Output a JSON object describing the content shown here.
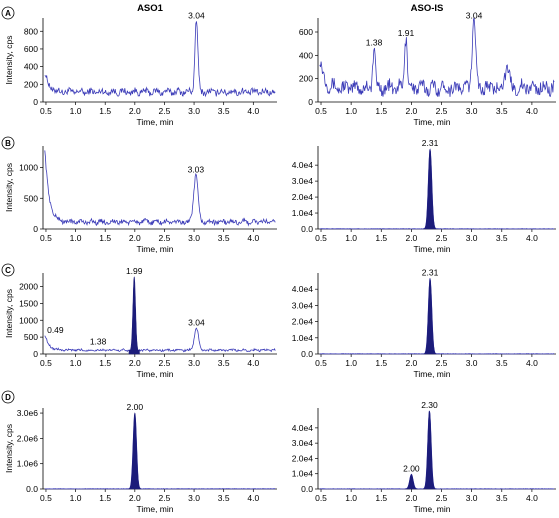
{
  "columns": [
    "ASO1",
    "ASO-IS"
  ],
  "xlabel": "Time, min",
  "ylabel": "Intensity, cps",
  "colors": {
    "trace": "#3c3cb8",
    "peak_fill": "#1c1c7a"
  },
  "chart_data": [
    {
      "id": "A-left",
      "row": "A",
      "column": "ASO1",
      "type": "line",
      "style": "noise",
      "xlim": [
        0.45,
        4.4
      ],
      "ylim": [
        0,
        950
      ],
      "xticks": [
        0.5,
        1.0,
        1.5,
        2.0,
        2.5,
        3.0,
        3.5,
        4.0
      ],
      "yticks": [
        0,
        200,
        400,
        600,
        800
      ],
      "ytick_labels": [
        "0",
        "200",
        "400",
        "600",
        "800"
      ],
      "baseline": 100,
      "noise": 70,
      "start_high": 320,
      "peaks": [
        {
          "x": 3.04,
          "height": 910,
          "width": 0.025,
          "label": "3.04"
        }
      ]
    },
    {
      "id": "A-right",
      "row": "A",
      "column": "ASO-IS",
      "type": "line",
      "style": "noise",
      "xlim": [
        0.45,
        4.4
      ],
      "ylim": [
        0,
        720
      ],
      "xticks": [
        0.5,
        1.0,
        1.5,
        2.0,
        2.5,
        3.0,
        3.5,
        4.0
      ],
      "yticks": [
        0,
        200,
        400,
        600
      ],
      "ytick_labels": [
        "0",
        "200",
        "400",
        "600"
      ],
      "baseline": 100,
      "noise": 110,
      "start_high": 350,
      "peaks": [
        {
          "x": 1.38,
          "height": 460,
          "width": 0.02,
          "label": "1.38"
        },
        {
          "x": 1.91,
          "height": 540,
          "width": 0.022,
          "label": "1.91"
        },
        {
          "x": 3.04,
          "height": 690,
          "width": 0.03,
          "label": "3.04"
        },
        {
          "x": 3.58,
          "height": 260,
          "width": 0.04,
          "label": ""
        }
      ]
    },
    {
      "id": "B-left",
      "row": "B",
      "column": "ASO1",
      "type": "line",
      "style": "noise",
      "xlim": [
        0.45,
        4.4
      ],
      "ylim": [
        0,
        1350
      ],
      "xticks": [
        0.5,
        1.0,
        1.5,
        2.0,
        2.5,
        3.0,
        3.5,
        4.0
      ],
      "yticks": [
        0,
        500,
        1000
      ],
      "ytick_labels": [
        "0",
        "500",
        "1000"
      ],
      "baseline": 100,
      "noise": 75,
      "start_high": 1300,
      "peaks": [
        {
          "x": 3.03,
          "height": 870,
          "width": 0.035,
          "label": "3.03"
        }
      ]
    },
    {
      "id": "B-right",
      "row": "B",
      "column": "ASO-IS",
      "type": "area",
      "style": "filled",
      "xlim": [
        0.45,
        4.4
      ],
      "ylim": [
        0,
        52000
      ],
      "xticks": [
        0.5,
        1.0,
        1.5,
        2.0,
        2.5,
        3.0,
        3.5,
        4.0
      ],
      "yticks": [
        0,
        10000,
        20000,
        30000,
        40000
      ],
      "ytick_labels": [
        "0.0",
        "1.0e4",
        "2.0e4",
        "3.0e4",
        "4.0e4"
      ],
      "peaks": [
        {
          "x": 2.31,
          "height": 50000,
          "width": 0.028,
          "label": "2.31"
        }
      ]
    },
    {
      "id": "C-left",
      "row": "C",
      "column": "ASO1",
      "type": "line",
      "style": "noise",
      "xlim": [
        0.45,
        4.4
      ],
      "ylim": [
        0,
        2400
      ],
      "xticks": [
        0.5,
        1.0,
        1.5,
        2.0,
        2.5,
        3.0,
        3.5,
        4.0
      ],
      "yticks": [
        0,
        500,
        1000,
        1500,
        2000
      ],
      "ytick_labels": [
        "0",
        "500",
        "1000",
        "1500",
        "2000"
      ],
      "baseline": 100,
      "noise": 60,
      "start_high": 560,
      "filled_peaks": [
        {
          "x": 1.99,
          "height": 2280,
          "width": 0.022,
          "label": "1.99"
        }
      ],
      "peaks": [
        {
          "x": 0.49,
          "height": 0,
          "width": 0.02,
          "label": "0.49"
        },
        {
          "x": 1.38,
          "height": 120,
          "width": 0.02,
          "label": "1.38"
        },
        {
          "x": 3.04,
          "height": 760,
          "width": 0.035,
          "label": "3.04"
        }
      ]
    },
    {
      "id": "C-right",
      "row": "C",
      "column": "ASO-IS",
      "type": "area",
      "style": "filled",
      "xlim": [
        0.45,
        4.4
      ],
      "ylim": [
        0,
        50000
      ],
      "xticks": [
        0.5,
        1.0,
        1.5,
        2.0,
        2.5,
        3.0,
        3.5,
        4.0
      ],
      "yticks": [
        0,
        10000,
        20000,
        30000,
        40000
      ],
      "ytick_labels": [
        "0.0",
        "1.0e4",
        "2.0e4",
        "3.0e4",
        "4.0e4"
      ],
      "peaks": [
        {
          "x": 2.31,
          "height": 46500,
          "width": 0.028,
          "label": "2.31"
        }
      ]
    },
    {
      "id": "D-left",
      "row": "D",
      "column": "ASO1",
      "type": "area",
      "style": "filled",
      "xlim": [
        0.45,
        4.4
      ],
      "ylim": [
        0,
        3200000
      ],
      "xticks": [
        0.5,
        1.0,
        1.5,
        2.0,
        2.5,
        3.0,
        3.5,
        4.0
      ],
      "yticks": [
        0,
        1000000,
        2000000,
        3000000
      ],
      "ytick_labels": [
        "0.0",
        "1.0e6",
        "2.0e6",
        "3.0e6"
      ],
      "peaks": [
        {
          "x": 2.0,
          "height": 3000000,
          "width": 0.028,
          "label": "2.00"
        }
      ]
    },
    {
      "id": "D-right",
      "row": "D",
      "column": "ASO-IS",
      "type": "area",
      "style": "filled",
      "xlim": [
        0.45,
        4.4
      ],
      "ylim": [
        0,
        53000
      ],
      "xticks": [
        0.5,
        1.0,
        1.5,
        2.0,
        2.5,
        3.0,
        3.5,
        4.0
      ],
      "yticks": [
        0,
        10000,
        20000,
        30000,
        40000
      ],
      "ytick_labels": [
        "0.0",
        "1.0e4",
        "2.0e4",
        "3.0e4",
        "4.0e4"
      ],
      "peaks": [
        {
          "x": 2.0,
          "height": 9500,
          "width": 0.028,
          "label": "2.00"
        },
        {
          "x": 2.3,
          "height": 51000,
          "width": 0.028,
          "label": "2.30"
        }
      ]
    }
  ]
}
